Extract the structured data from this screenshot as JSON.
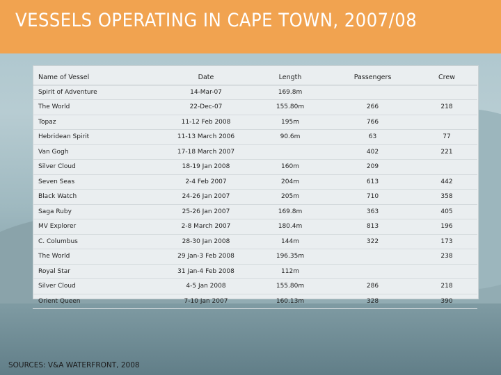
{
  "slide": {
    "title": "VESSELS OPERATING IN CAPE TOWN, 2007/08",
    "source": "SOURCES: V&A WATERFRONT, 2008",
    "colors": {
      "header": "#f1a350",
      "title_text": "#ffffff",
      "table_bg": "#eaeef0"
    }
  },
  "table": {
    "columns": [
      "Name of Vessel",
      "Date",
      "Length",
      "Passengers",
      "Crew"
    ],
    "rows": [
      [
        "Spirit of Adventure",
        "14-Mar-07",
        "169.8m",
        "",
        ""
      ],
      [
        "The World",
        "22-Dec-07",
        "155.80m",
        "266",
        "218"
      ],
      [
        "Topaz",
        "11-12 Feb 2008",
        "195m",
        "766",
        ""
      ],
      [
        "Hebridean Spirit",
        "11-13 March 2006",
        "90.6m",
        "63",
        "77"
      ],
      [
        "Van Gogh",
        "17-18 March 2007",
        "",
        "402",
        "221"
      ],
      [
        "Silver Cloud",
        "18-19 Jan 2008",
        "160m",
        "209",
        ""
      ],
      [
        "Seven Seas",
        "2-4 Feb 2007",
        "204m",
        "613",
        "442"
      ],
      [
        "Black Watch",
        "24-26 Jan 2007",
        "205m",
        "710",
        "358"
      ],
      [
        "Saga Ruby",
        "25-26 Jan 2007",
        "169.8m",
        "363",
        "405"
      ],
      [
        "MV Explorer",
        "2-8 March 2007",
        "180.4m",
        "813",
        "196"
      ],
      [
        "C. Columbus",
        "28-30 Jan 2008",
        "144m",
        "322",
        "173"
      ],
      [
        "The World",
        "29 Jan-3 Feb 2008",
        "196.35m",
        "",
        "238"
      ],
      [
        "Royal Star",
        "31 Jan-4 Feb 2008",
        "112m",
        "",
        ""
      ],
      [
        "Silver Cloud",
        "4-5 Jan 2008",
        "155.80m",
        "286",
        "218"
      ],
      [
        "Orient Queen",
        "7-10 Jan 2007",
        "160.13m",
        "328",
        "390"
      ]
    ]
  }
}
